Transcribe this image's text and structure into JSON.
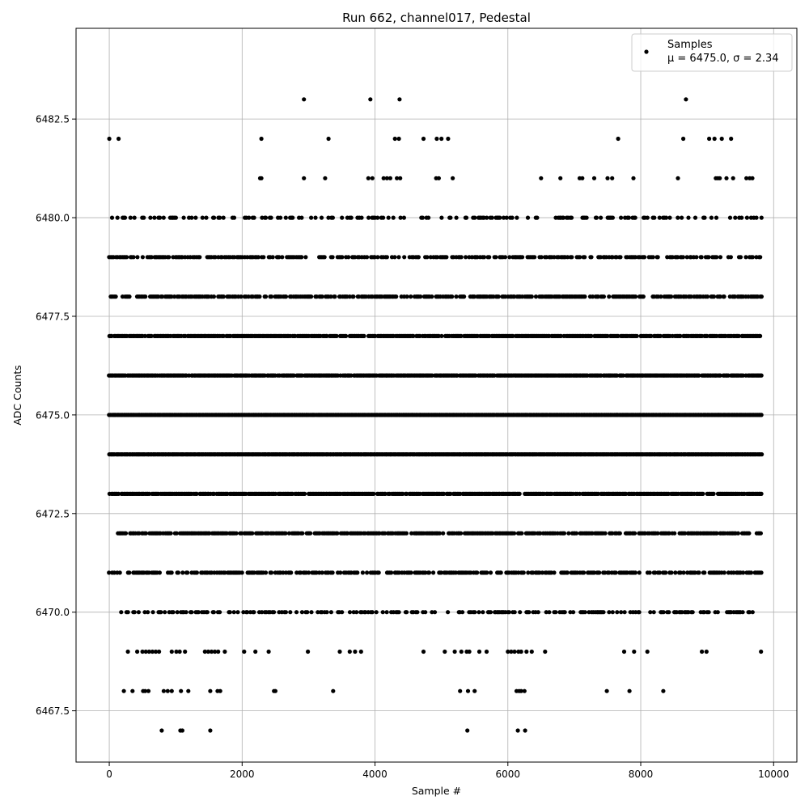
{
  "chart_data": {
    "type": "scatter",
    "title": "Run 662, channel017, Pedestal",
    "xlabel": "Sample #",
    "ylabel": "ADC Counts",
    "xlim": [
      -500,
      10350
    ],
    "ylim": [
      6466.2,
      6484.8
    ],
    "xticks": [
      0,
      2000,
      4000,
      6000,
      8000,
      10000
    ],
    "xtick_labels": [
      "0",
      "2000",
      "4000",
      "6000",
      "8000",
      "10000"
    ],
    "yticks": [
      6467.5,
      6470.0,
      6472.5,
      6475.0,
      6477.5,
      6480.0,
      6482.5
    ],
    "ytick_labels": [
      "6467.5",
      "6470.0",
      "6472.5",
      "6475.0",
      "6477.5",
      "6480.0",
      "6482.5"
    ],
    "grid": true,
    "legend_position": "top-right",
    "legend": {
      "label": "Samples",
      "stats": "μ = 6475.0, σ = 2.34"
    },
    "marker_color": "#000000",
    "series": [
      {
        "name": "Samples",
        "points": [
          [
            0,
            6482
          ],
          [
            140,
            6482
          ],
          [
            2290,
            6482
          ],
          [
            3300,
            6482
          ],
          [
            4300,
            6482
          ],
          [
            4360,
            6482
          ],
          [
            4730,
            6482
          ],
          [
            4930,
            6482
          ],
          [
            5000,
            6482
          ],
          [
            5100,
            6482
          ],
          [
            7660,
            6482
          ],
          [
            8640,
            6482
          ],
          [
            9030,
            6482
          ],
          [
            9110,
            6482
          ],
          [
            9220,
            6482
          ],
          [
            9360,
            6482
          ],
          [
            2930,
            6483
          ],
          [
            3930,
            6483
          ],
          [
            4370,
            6483
          ],
          [
            8680,
            6483
          ],
          [
            2270,
            6481
          ],
          [
            2290,
            6481
          ],
          [
            2930,
            6481
          ],
          [
            3250,
            6481
          ],
          [
            3900,
            6481
          ],
          [
            3960,
            6481
          ],
          [
            4130,
            6481
          ],
          [
            4180,
            6481
          ],
          [
            4230,
            6481
          ],
          [
            4330,
            6481
          ],
          [
            4380,
            6481
          ],
          [
            4920,
            6481
          ],
          [
            4960,
            6481
          ],
          [
            5170,
            6481
          ],
          [
            6500,
            6481
          ],
          [
            6790,
            6481
          ],
          [
            7080,
            6481
          ],
          [
            7120,
            6481
          ],
          [
            7300,
            6481
          ],
          [
            7500,
            6481
          ],
          [
            7570,
            6481
          ],
          [
            7890,
            6481
          ],
          [
            8560,
            6481
          ],
          [
            9130,
            6481
          ],
          [
            9160,
            6481
          ],
          [
            9190,
            6481
          ],
          [
            9290,
            6481
          ],
          [
            9390,
            6481
          ],
          [
            9590,
            6481
          ],
          [
            9640,
            6481
          ],
          [
            9680,
            6481
          ],
          [
            790,
            6467
          ],
          [
            1070,
            6467
          ],
          [
            1100,
            6467
          ],
          [
            1520,
            6467
          ],
          [
            5390,
            6467
          ],
          [
            6150,
            6467
          ],
          [
            6260,
            6467
          ],
          [
            220,
            6468
          ],
          [
            350,
            6468
          ],
          [
            510,
            6468
          ],
          [
            540,
            6468
          ],
          [
            590,
            6468
          ],
          [
            820,
            6468
          ],
          [
            880,
            6468
          ],
          [
            940,
            6468
          ],
          [
            1080,
            6468
          ],
          [
            1190,
            6468
          ],
          [
            1520,
            6468
          ],
          [
            1630,
            6468
          ],
          [
            1670,
            6468
          ],
          [
            2480,
            6468
          ],
          [
            2500,
            6468
          ],
          [
            3370,
            6468
          ],
          [
            5280,
            6468
          ],
          [
            5400,
            6468
          ],
          [
            5500,
            6468
          ],
          [
            6130,
            6468
          ],
          [
            6170,
            6468
          ],
          [
            6200,
            6468
          ],
          [
            6250,
            6468
          ],
          [
            7490,
            6468
          ],
          [
            7830,
            6468
          ],
          [
            8340,
            6468
          ],
          [
            280,
            6469
          ],
          [
            420,
            6469
          ],
          [
            500,
            6469
          ],
          [
            550,
            6469
          ],
          [
            600,
            6469
          ],
          [
            650,
            6469
          ],
          [
            700,
            6469
          ],
          [
            750,
            6469
          ],
          [
            940,
            6469
          ],
          [
            1010,
            6469
          ],
          [
            1060,
            6469
          ],
          [
            1140,
            6469
          ],
          [
            1440,
            6469
          ],
          [
            1490,
            6469
          ],
          [
            1540,
            6469
          ],
          [
            1590,
            6469
          ],
          [
            1640,
            6469
          ],
          [
            1740,
            6469
          ],
          [
            2030,
            6469
          ],
          [
            2200,
            6469
          ],
          [
            2400,
            6469
          ],
          [
            2990,
            6469
          ],
          [
            3470,
            6469
          ],
          [
            3620,
            6469
          ],
          [
            3700,
            6469
          ],
          [
            3790,
            6469
          ],
          [
            4730,
            6469
          ],
          [
            5050,
            6469
          ],
          [
            5200,
            6469
          ],
          [
            5300,
            6469
          ],
          [
            5380,
            6469
          ],
          [
            5420,
            6469
          ],
          [
            5570,
            6469
          ],
          [
            5680,
            6469
          ],
          [
            6000,
            6469
          ],
          [
            6050,
            6469
          ],
          [
            6100,
            6469
          ],
          [
            6160,
            6469
          ],
          [
            6200,
            6469
          ],
          [
            6280,
            6469
          ],
          [
            6360,
            6469
          ],
          [
            6560,
            6469
          ],
          [
            7750,
            6469
          ],
          [
            7900,
            6469
          ],
          [
            8100,
            6469
          ],
          [
            8920,
            6469
          ],
          [
            8990,
            6469
          ],
          [
            9810,
            6469
          ]
        ],
        "dense_rows": [
          {
            "y": 6480,
            "x_from": 20,
            "x_to": 9820,
            "density": 0.35
          },
          {
            "y": 6479,
            "x_from": 0,
            "x_to": 9820,
            "density": 0.55
          },
          {
            "y": 6478,
            "x_from": 0,
            "x_to": 9820,
            "density": 0.7
          },
          {
            "y": 6477,
            "x_from": 0,
            "x_to": 9820,
            "density": 0.9
          },
          {
            "y": 6476,
            "x_from": 0,
            "x_to": 9820,
            "density": 0.95
          },
          {
            "y": 6475,
            "x_from": 0,
            "x_to": 9820,
            "density": 1.0
          },
          {
            "y": 6474,
            "x_from": 0,
            "x_to": 9820,
            "density": 1.0
          },
          {
            "y": 6473,
            "x_from": 0,
            "x_to": 9820,
            "density": 0.9
          },
          {
            "y": 6472,
            "x_from": 130,
            "x_to": 9820,
            "density": 0.8
          },
          {
            "y": 6471,
            "x_from": 0,
            "x_to": 9820,
            "density": 0.6
          },
          {
            "y": 6470,
            "x_from": 160,
            "x_to": 9800,
            "density": 0.45
          }
        ]
      }
    ]
  }
}
